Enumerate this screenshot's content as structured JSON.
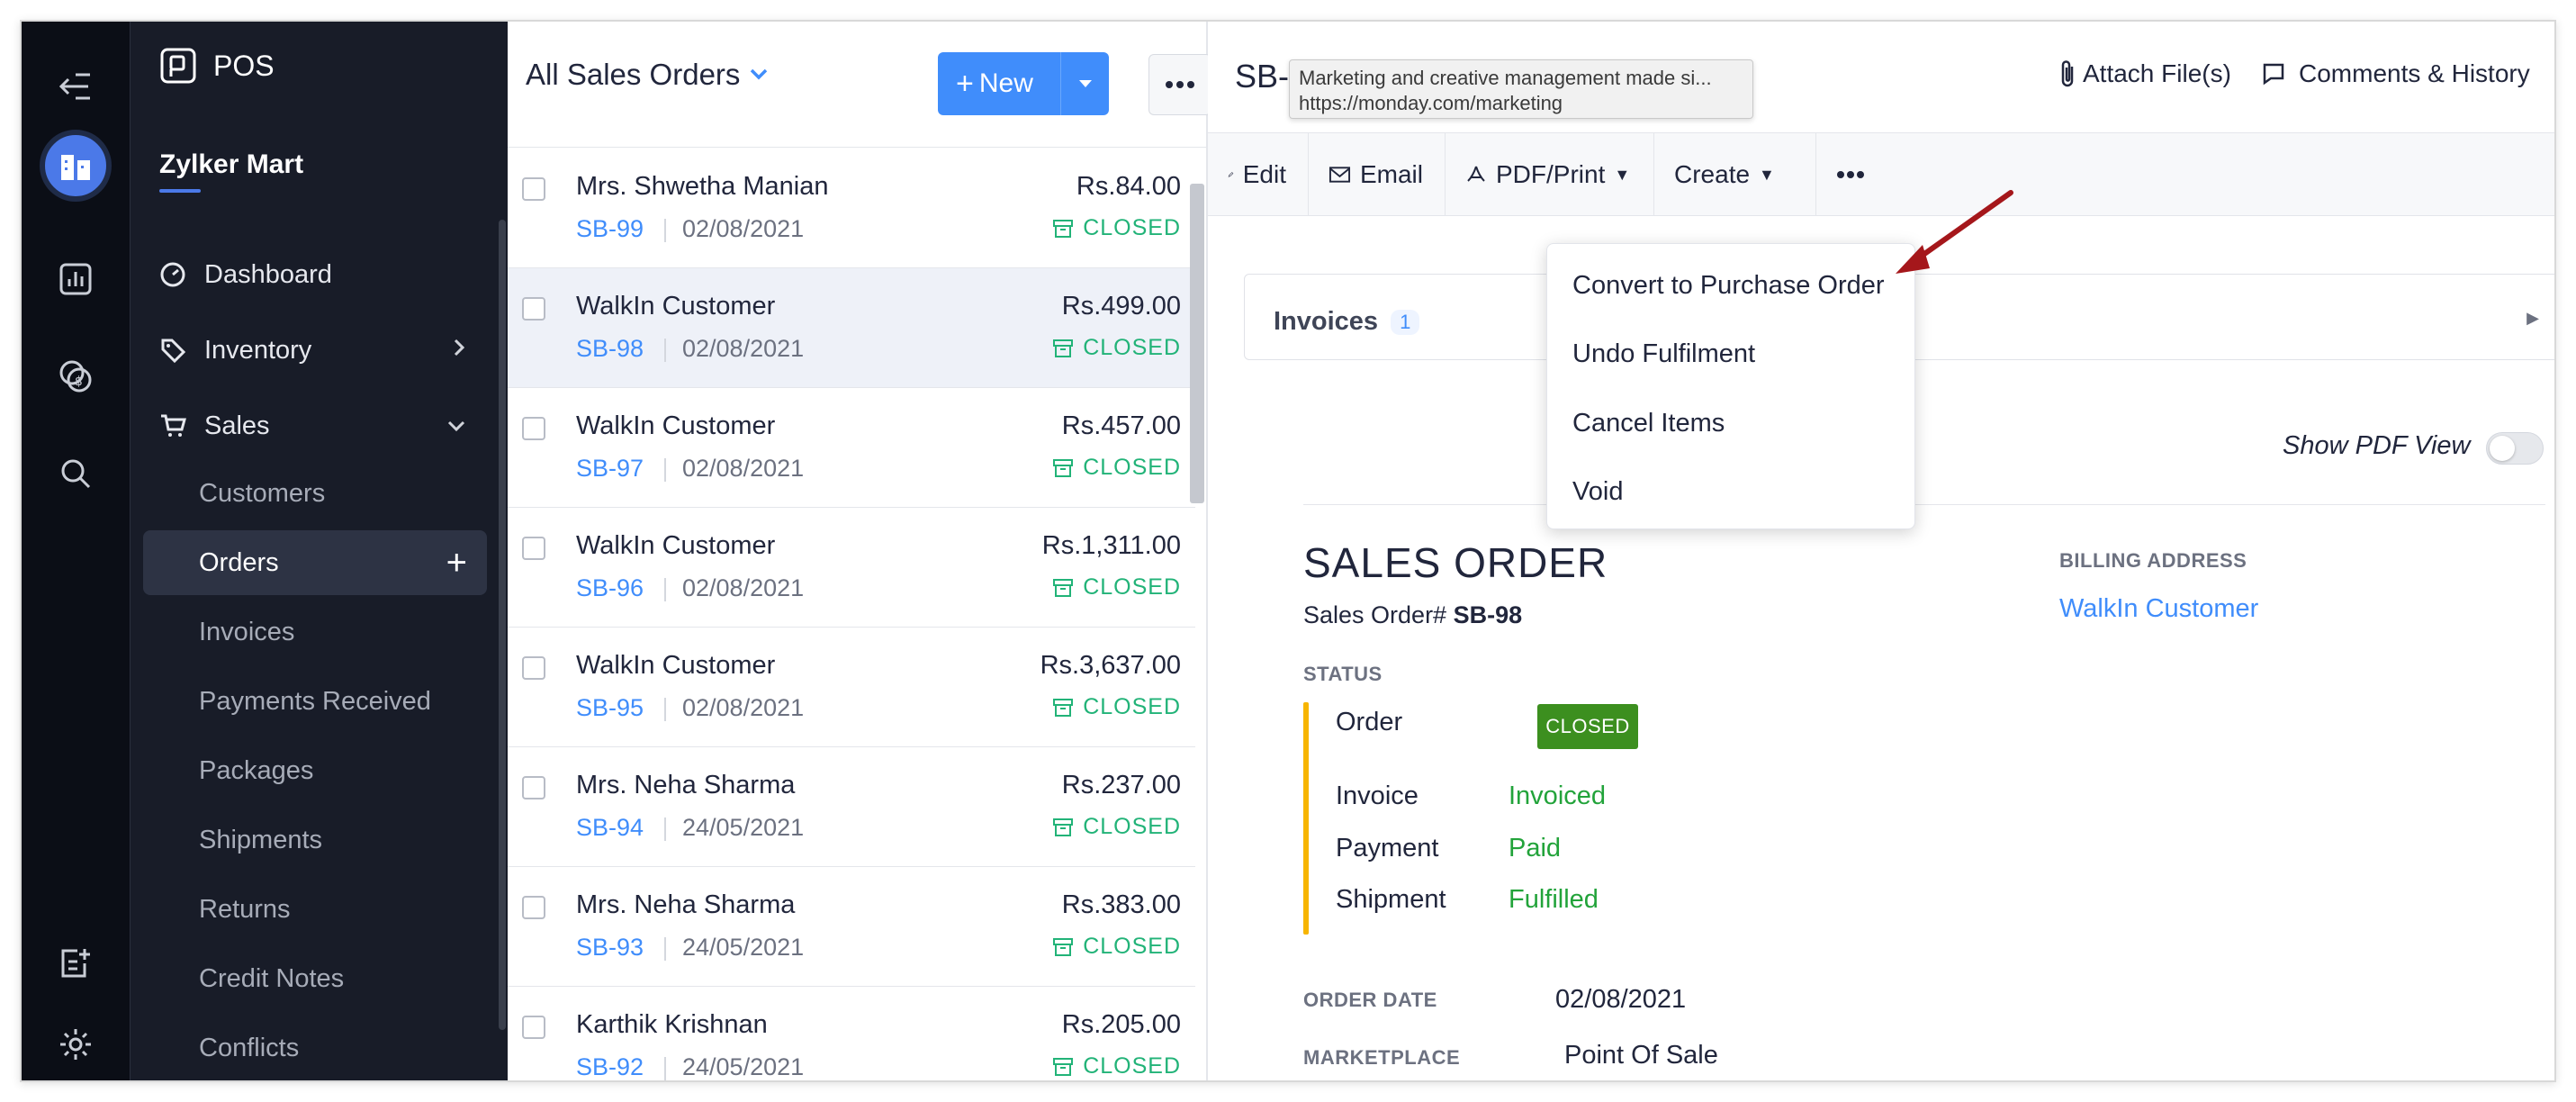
{
  "app": {
    "name": "POS",
    "org": "Zylker Mart"
  },
  "sidebar": {
    "nav": [
      {
        "label": "Dashboard"
      },
      {
        "label": "Inventory"
      },
      {
        "label": "Sales"
      }
    ],
    "sub": [
      {
        "label": "Customers"
      },
      {
        "label": "Orders"
      },
      {
        "label": "Invoices"
      },
      {
        "label": "Payments Received"
      },
      {
        "label": "Packages"
      },
      {
        "label": "Shipments"
      },
      {
        "label": "Returns"
      },
      {
        "label": "Credit Notes"
      },
      {
        "label": "Conflicts"
      }
    ]
  },
  "list": {
    "title": "All Sales Orders",
    "new_label": "New",
    "rows": [
      {
        "customer": "Mrs. Shwetha Manian",
        "ref": "SB-99",
        "date": "02/08/2021",
        "amount": "Rs.84.00",
        "status": "CLOSED"
      },
      {
        "customer": "WalkIn Customer",
        "ref": "SB-98",
        "date": "02/08/2021",
        "amount": "Rs.499.00",
        "status": "CLOSED"
      },
      {
        "customer": "WalkIn Customer",
        "ref": "SB-97",
        "date": "02/08/2021",
        "amount": "Rs.457.00",
        "status": "CLOSED"
      },
      {
        "customer": "WalkIn Customer",
        "ref": "SB-96",
        "date": "02/08/2021",
        "amount": "Rs.1,311.00",
        "status": "CLOSED"
      },
      {
        "customer": "WalkIn Customer",
        "ref": "SB-95",
        "date": "02/08/2021",
        "amount": "Rs.3,637.00",
        "status": "CLOSED"
      },
      {
        "customer": "Mrs. Neha Sharma",
        "ref": "SB-94",
        "date": "24/05/2021",
        "amount": "Rs.237.00",
        "status": "CLOSED"
      },
      {
        "customer": "Mrs. Neha Sharma",
        "ref": "SB-93",
        "date": "24/05/2021",
        "amount": "Rs.383.00",
        "status": "CLOSED"
      },
      {
        "customer": "Karthik Krishnan",
        "ref": "SB-92",
        "date": "24/05/2021",
        "amount": "Rs.205.00",
        "status": "CLOSED"
      }
    ]
  },
  "detail": {
    "title": "SB-",
    "tooltip": {
      "line1": "Marketing and creative management made si...",
      "line2": "https://monday.com/marketing"
    },
    "attach": "Attach File(s)",
    "comments": "Comments & History",
    "toolbar": {
      "edit": "Edit",
      "email": "Email",
      "pdf": "PDF/Print",
      "create": "Create"
    },
    "menu": [
      "Convert to Purchase Order",
      "Undo Fulfilment",
      "Cancel Items",
      "Void"
    ],
    "invoices": {
      "label": "Invoices",
      "count": "1"
    },
    "pdf_view": "Show PDF View",
    "doc": {
      "heading": "SALES ORDER",
      "number_label": "Sales Order#",
      "number": "SB-98",
      "status_caption": "STATUS",
      "statuses": [
        {
          "label": "Order",
          "value": "CLOSED"
        },
        {
          "label": "Invoice",
          "value": "Invoiced"
        },
        {
          "label": "Payment",
          "value": "Paid"
        },
        {
          "label": "Shipment",
          "value": "Fulfilled"
        }
      ],
      "billing_caption": "BILLING ADDRESS",
      "billing_name": "WalkIn Customer",
      "order_date_caption": "ORDER DATE",
      "order_date": "02/08/2021",
      "marketplace_caption": "MARKETPLACE",
      "marketplace": "Point Of Sale"
    }
  },
  "colors": {
    "accent": "#408dfb",
    "closed_green": "#22b378",
    "badge_green": "#3c8f1f",
    "status_bar": "#f7b500",
    "sidebar_bg": "#181c28",
    "rail_bg": "#0b0e16"
  }
}
